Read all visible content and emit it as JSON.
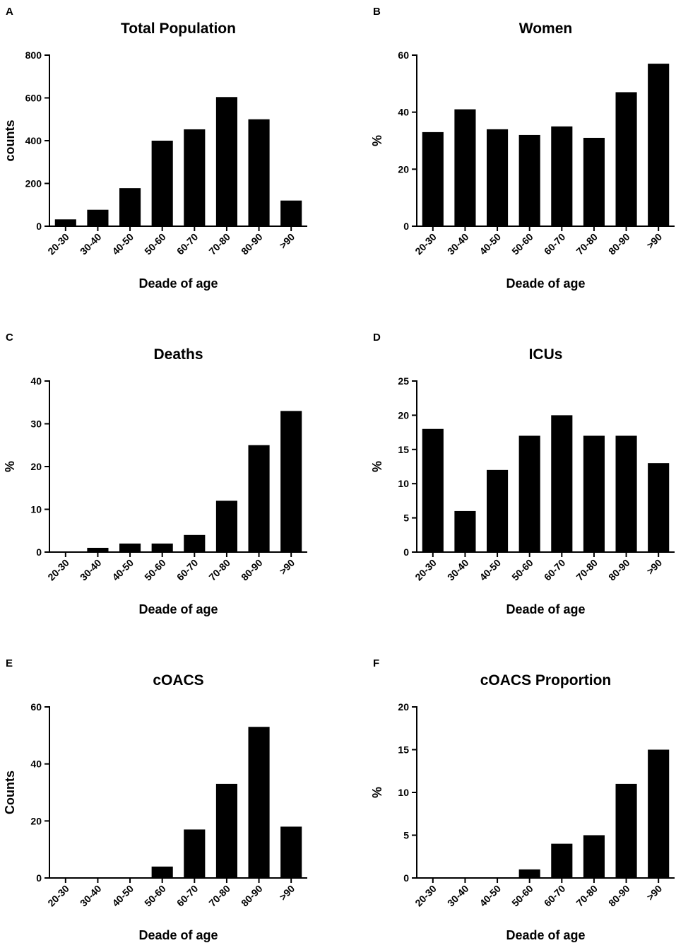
{
  "chart_data": [
    {
      "panel": "A",
      "type": "bar",
      "title": "Total Population",
      "xlabel": "Deade of age",
      "ylabel": "counts",
      "categories": [
        "20-30",
        "30-40",
        "40-50",
        "50-60",
        "60-70",
        "70-80",
        "80-90",
        ">90"
      ],
      "values": [
        32,
        77,
        178,
        400,
        453,
        604,
        500,
        120
      ],
      "ylim": [
        0,
        800
      ],
      "yticks": [
        0,
        200,
        400,
        600,
        800
      ],
      "colors": {
        "bar": "#000000"
      }
    },
    {
      "panel": "B",
      "type": "bar",
      "title": "Women",
      "xlabel": "Deade of age",
      "ylabel": "%",
      "categories": [
        "20-30",
        "30-40",
        "40-50",
        "50-60",
        "60-70",
        "70-80",
        "80-90",
        ">90"
      ],
      "values": [
        33,
        41,
        34,
        32,
        35,
        31,
        47,
        57
      ],
      "ylim": [
        0,
        60
      ],
      "yticks": [
        0,
        20,
        40,
        60
      ],
      "colors": {
        "bar": "#000000"
      }
    },
    {
      "panel": "C",
      "type": "bar",
      "title": "Deaths",
      "xlabel": "Deade of age",
      "ylabel": "%",
      "categories": [
        "20-30",
        "30-40",
        "40-50",
        "50-60",
        "60-70",
        "70-80",
        "80-90",
        ">90"
      ],
      "values": [
        0,
        1,
        2,
        2,
        4,
        12,
        25,
        33
      ],
      "ylim": [
        0,
        40
      ],
      "yticks": [
        0,
        10,
        20,
        30,
        40
      ],
      "colors": {
        "bar": "#000000"
      }
    },
    {
      "panel": "D",
      "type": "bar",
      "title": "ICUs",
      "xlabel": "Deade of age",
      "ylabel": "%",
      "categories": [
        "20-30",
        "30-40",
        "40-50",
        "50-60",
        "60-70",
        "70-80",
        "80-90",
        ">90"
      ],
      "values": [
        18,
        6,
        12,
        17,
        20,
        17,
        17,
        13
      ],
      "ylim": [
        0,
        25
      ],
      "yticks": [
        0,
        5,
        10,
        15,
        20,
        25
      ],
      "colors": {
        "bar": "#000000"
      }
    },
    {
      "panel": "E",
      "type": "bar",
      "title": "cOACS",
      "xlabel": "Deade of age",
      "ylabel": "Counts",
      "categories": [
        "20-30",
        "30-40",
        "40-50",
        "50-60",
        "60-70",
        "70-80",
        "80-90",
        ">90"
      ],
      "values": [
        0,
        0,
        0,
        4,
        17,
        33,
        53,
        18
      ],
      "ylim": [
        0,
        60
      ],
      "yticks": [
        0,
        20,
        40,
        60
      ],
      "colors": {
        "bar": "#000000"
      }
    },
    {
      "panel": "F",
      "type": "bar",
      "title": "cOACS Proportion",
      "xlabel": "Deade of age",
      "ylabel": "%",
      "categories": [
        "20-30",
        "30-40",
        "40-50",
        "50-60",
        "60-70",
        "70-80",
        "80-90",
        ">90"
      ],
      "values": [
        0,
        0,
        0,
        1,
        4,
        5,
        11,
        15
      ],
      "ylim": [
        0,
        20
      ],
      "yticks": [
        0,
        5,
        10,
        15,
        20
      ],
      "colors": {
        "bar": "#000000"
      }
    }
  ]
}
